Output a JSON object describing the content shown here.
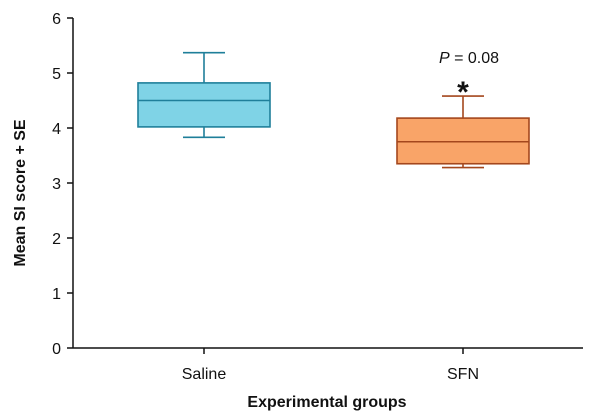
{
  "chart_data": {
    "type": "box",
    "title": "",
    "xlabel": "Experimental groups",
    "ylabel": "Mean SI score + SE",
    "ylim": [
      0,
      6
    ],
    "yticks": [
      0,
      1,
      2,
      3,
      4,
      5,
      6
    ],
    "grid": false,
    "categories": [
      "Saline",
      "SFN"
    ],
    "boxes": [
      {
        "category": "Saline",
        "whisker_low": 3.83,
        "q1": 4.02,
        "median": 4.5,
        "q3": 4.82,
        "whisker_high": 5.37,
        "fill": "#7fd3e6",
        "stroke": "#1f7f9a"
      },
      {
        "category": "SFN",
        "whisker_low": 3.28,
        "q1": 3.35,
        "median": 3.75,
        "q3": 4.18,
        "whisker_high": 4.58,
        "fill": "#f9a468",
        "stroke": "#a4471d"
      }
    ],
    "annotations": [
      {
        "category": "SFN",
        "p_symbol": "P",
        "p_text": " = 0.08",
        "marker": "*"
      }
    ]
  }
}
